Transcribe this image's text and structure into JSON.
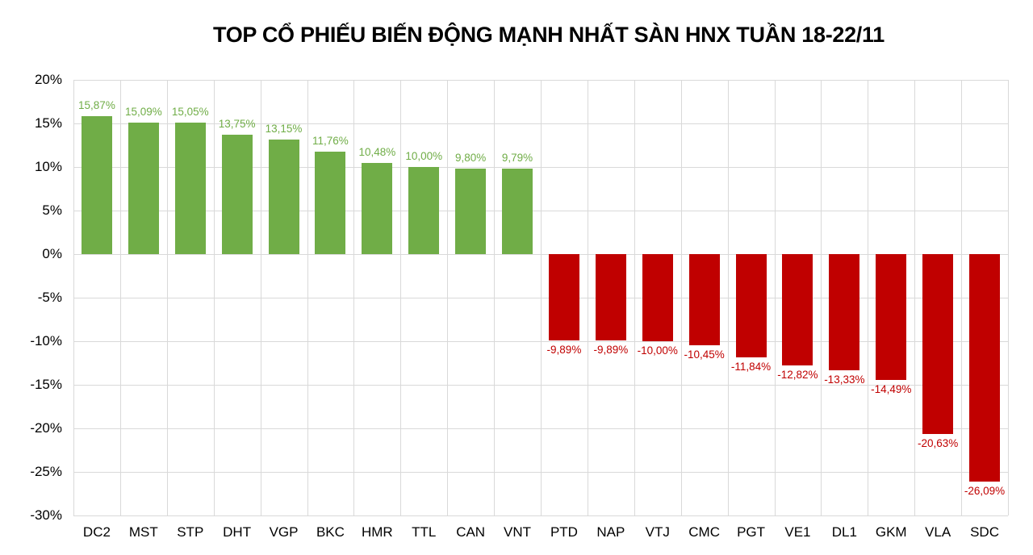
{
  "title": "TOP CỔ PHIẾU BIẾN ĐỘNG MẠNH NHẤT SÀN HNX TUẦN 18-22/11",
  "colors": {
    "positive": "#70ad47",
    "negative": "#c00000",
    "grid": "#d9d9d9"
  },
  "y_ticks": [
    "20%",
    "15%",
    "10%",
    "5%",
    "0%",
    "-5%",
    "-10%",
    "-15%",
    "-20%",
    "-25%",
    "-30%"
  ],
  "chart_data": {
    "type": "bar",
    "title": "TOP CỔ PHIẾU BIẾN ĐỘNG MẠNH NHẤT SÀN HNX TUẦN 18-22/11",
    "xlabel": "",
    "ylabel": "",
    "ylim": [
      -30,
      20
    ],
    "grid": true,
    "legend": "none",
    "categories": [
      "DC2",
      "MST",
      "STP",
      "DHT",
      "VGP",
      "BKC",
      "HMR",
      "TTL",
      "CAN",
      "VNT",
      "PTD",
      "NAP",
      "VTJ",
      "CMC",
      "PGT",
      "VE1",
      "DL1",
      "GKM",
      "VLA",
      "SDC"
    ],
    "values": [
      15.87,
      15.09,
      15.05,
      13.75,
      13.15,
      11.76,
      10.48,
      10.0,
      9.8,
      9.79,
      -9.89,
      -9.89,
      -10.0,
      -10.45,
      -11.84,
      -12.82,
      -13.33,
      -14.49,
      -20.63,
      -26.09
    ],
    "labels": [
      "15,87%",
      "15,09%",
      "15,05%",
      "13,75%",
      "13,15%",
      "11,76%",
      "10,48%",
      "10,00%",
      "9,80%",
      "9,79%",
      "-9,89%",
      "-9,89%",
      "-10,00%",
      "-10,45%",
      "-11,84%",
      "-12,82%",
      "-13,33%",
      "-14,49%",
      "-20,63%",
      "-26,09%"
    ]
  }
}
